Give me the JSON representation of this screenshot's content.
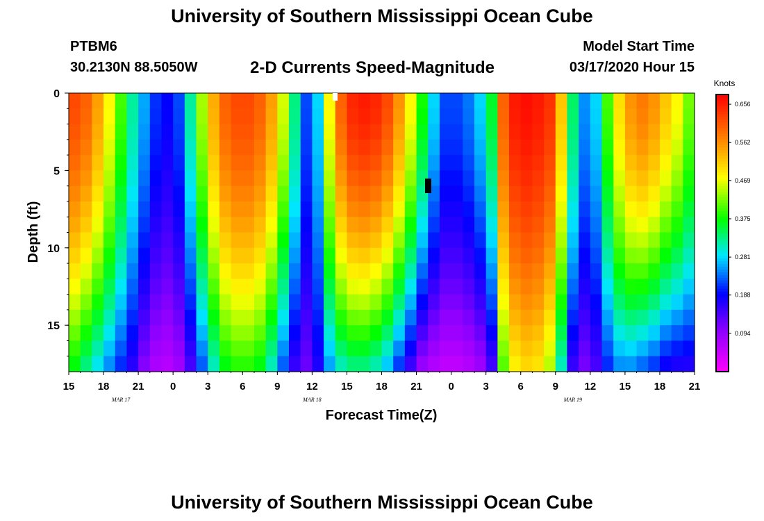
{
  "header": {
    "title": "University of Southern Mississippi Ocean Cube",
    "station": "PTBM6",
    "coordinates": "30.2130N 88.5050W",
    "subtitle": "2-D Currents Speed-Magnitude",
    "start_label": "Model Start Time",
    "start_value": "03/17/2020 Hour 15"
  },
  "footer": {
    "title": "University of Southern Mississippi Ocean Cube"
  },
  "chart_data": {
    "type": "heatmap",
    "title": "2-D Currents Speed-Magnitude",
    "xlabel": "Forecast Time(Z)",
    "ylabel": "Depth (ft)",
    "xlim": [
      0,
      54
    ],
    "ylim": [
      0,
      18
    ],
    "x_ticks": [
      {
        "t": 0,
        "label": "15"
      },
      {
        "t": 3,
        "label": "18"
      },
      {
        "t": 6,
        "label": "21"
      },
      {
        "t": 9,
        "label": "0"
      },
      {
        "t": 12,
        "label": "3"
      },
      {
        "t": 15,
        "label": "6"
      },
      {
        "t": 18,
        "label": "9"
      },
      {
        "t": 21,
        "label": "12"
      },
      {
        "t": 24,
        "label": "15"
      },
      {
        "t": 27,
        "label": "18"
      },
      {
        "t": 30,
        "label": "21"
      },
      {
        "t": 33,
        "label": "0"
      },
      {
        "t": 36,
        "label": "3"
      },
      {
        "t": 39,
        "label": "6"
      },
      {
        "t": 42,
        "label": "9"
      },
      {
        "t": 45,
        "label": "12"
      },
      {
        "t": 48,
        "label": "15"
      },
      {
        "t": 51,
        "label": "18"
      },
      {
        "t": 54,
        "label": "21"
      }
    ],
    "date_labels": [
      {
        "t": 4.5,
        "label": "MAR  17"
      },
      {
        "t": 21,
        "label": "MAR  18"
      },
      {
        "t": 43.5,
        "label": "MAR  19"
      }
    ],
    "y_ticks": [
      0,
      5,
      10,
      15
    ],
    "y_tick_labels": [
      "0",
      "5",
      "10",
      "15"
    ],
    "colorbar": {
      "label": "Knots",
      "min": 0.0,
      "max": 0.68,
      "ticks": [
        0.656,
        0.562,
        0.469,
        0.375,
        0.281,
        0.188,
        0.094
      ],
      "tick_labels": [
        "0.656",
        "0.562",
        "0.469",
        "0.375",
        "0.281",
        "0.188",
        "0.094"
      ]
    },
    "time_steps_hours": [
      0,
      1,
      2,
      3,
      4,
      5,
      6,
      7,
      8,
      9,
      10,
      11,
      12,
      13,
      14,
      15,
      16,
      17,
      18,
      19,
      20,
      21,
      22,
      23,
      24,
      25,
      26,
      27,
      28,
      29,
      30,
      31,
      32,
      33,
      34,
      35,
      36,
      37,
      38,
      39,
      40,
      41,
      42,
      43,
      44,
      45,
      46,
      47,
      48,
      49,
      50,
      51,
      52,
      53
    ],
    "surface_speed_knots": [
      0.62,
      0.6,
      0.55,
      0.48,
      0.4,
      0.32,
      0.26,
      0.21,
      0.19,
      0.22,
      0.32,
      0.44,
      0.54,
      0.6,
      0.62,
      0.62,
      0.6,
      0.55,
      0.46,
      0.33,
      0.22,
      0.28,
      0.48,
      0.6,
      0.65,
      0.66,
      0.65,
      0.62,
      0.56,
      0.48,
      0.38,
      0.28,
      0.22,
      0.22,
      0.24,
      0.28,
      0.36,
      0.6,
      0.66,
      0.67,
      0.66,
      0.64,
      0.52,
      0.34,
      0.25,
      0.28,
      0.4,
      0.5,
      0.56,
      0.58,
      0.56,
      0.52,
      0.48,
      0.42
    ],
    "bottom_speed_knots": [
      0.36,
      0.32,
      0.28,
      0.24,
      0.2,
      0.16,
      0.1,
      0.07,
      0.06,
      0.08,
      0.14,
      0.22,
      0.3,
      0.36,
      0.38,
      0.38,
      0.36,
      0.3,
      0.22,
      0.15,
      0.12,
      0.17,
      0.25,
      0.3,
      0.32,
      0.32,
      0.3,
      0.26,
      0.2,
      0.14,
      0.08,
      0.06,
      0.05,
      0.05,
      0.06,
      0.08,
      0.14,
      0.4,
      0.48,
      0.5,
      0.49,
      0.44,
      0.3,
      0.15,
      0.11,
      0.14,
      0.2,
      0.24,
      0.24,
      0.22,
      0.2,
      0.17,
      0.16,
      0.16
    ],
    "depth_levels_ft": [
      0,
      1,
      2,
      3,
      4,
      5,
      6,
      7,
      8,
      9,
      10,
      11,
      12,
      13,
      14,
      15,
      16,
      17,
      18
    ]
  },
  "icons": {
    "marker_white": "white-marker-icon",
    "marker_black": "black-marker-icon"
  }
}
